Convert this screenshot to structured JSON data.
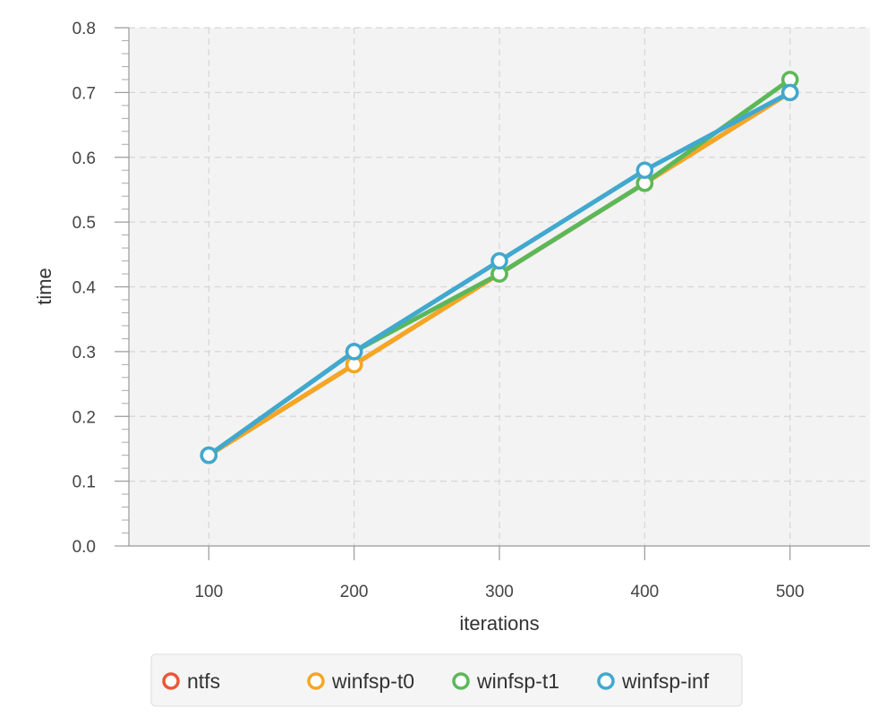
{
  "chart_data": {
    "type": "line",
    "title": "",
    "xlabel": "iterations",
    "ylabel": "time",
    "x": [
      100,
      200,
      300,
      400,
      500
    ],
    "xlim": [
      45,
      555
    ],
    "ylim": [
      0,
      0.8
    ],
    "xticks": [
      "100",
      "200",
      "300",
      "400",
      "500"
    ],
    "yticks": [
      "0.0",
      "0.1",
      "0.2",
      "0.3",
      "0.4",
      "0.5",
      "0.6",
      "0.7",
      "0.8"
    ],
    "grid": true,
    "legend_position": "bottom",
    "series": [
      {
        "name": "ntfs",
        "color": "#e8593a",
        "values": [
          0.14,
          0.28,
          0.42,
          0.56,
          0.7
        ]
      },
      {
        "name": "winfsp-t0",
        "color": "#f5a623",
        "values": [
          0.14,
          0.28,
          0.42,
          0.56,
          0.7
        ]
      },
      {
        "name": "winfsp-t1",
        "color": "#5bb85a",
        "values": [
          0.14,
          0.3,
          0.42,
          0.56,
          0.72
        ]
      },
      {
        "name": "winfsp-inf",
        "color": "#41a8cf",
        "values": [
          0.14,
          0.3,
          0.44,
          0.58,
          0.7
        ]
      }
    ]
  }
}
